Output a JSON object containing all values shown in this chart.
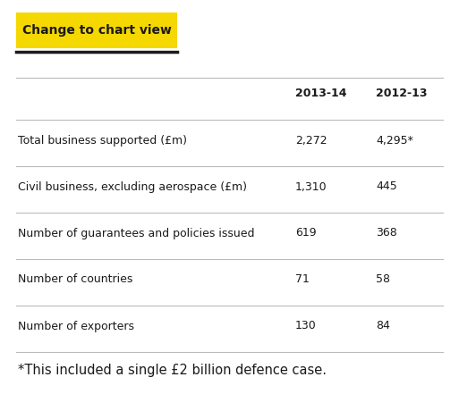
{
  "button_text": "Change to chart view",
  "button_bg": "#F5D800",
  "button_text_color": "#1a1a1a",
  "col_headers": [
    "2013-14",
    "2012-13"
  ],
  "rows": [
    [
      "Total business supported (£m)",
      "2,272",
      "4,295*"
    ],
    [
      "Civil business, excluding aerospace (£m)",
      "1,310",
      "445"
    ],
    [
      "Number of guarantees and policies issued",
      "619",
      "368"
    ],
    [
      "Number of countries",
      "71",
      "58"
    ],
    [
      "Number of exporters",
      "130",
      "84"
    ]
  ],
  "footnote": "*This included a single £2 billion defence case.",
  "bg_color": "#ffffff",
  "text_color": "#1a1a1a",
  "line_color": "#bbbbbb",
  "header_fontsize": 9,
  "cell_fontsize": 9,
  "footnote_fontsize": 10.5,
  "button_fontsize": 10
}
